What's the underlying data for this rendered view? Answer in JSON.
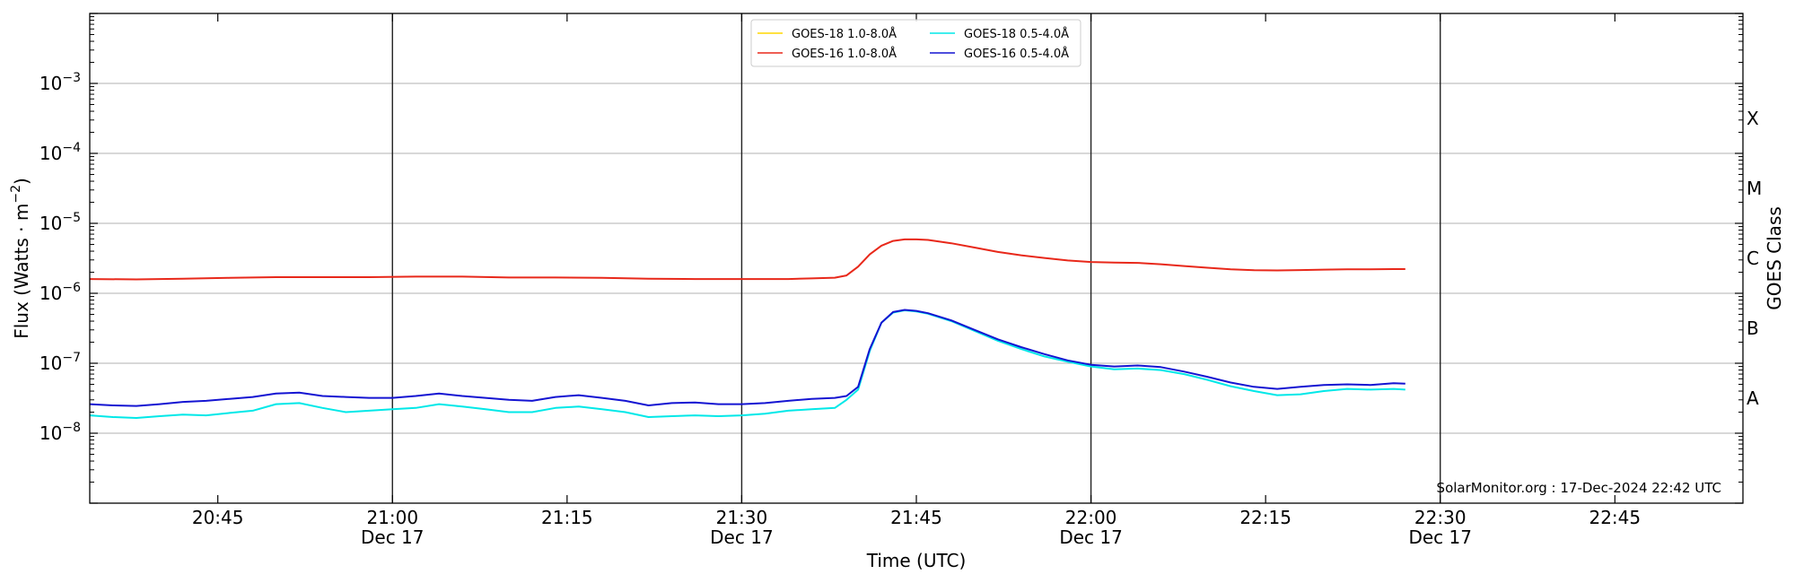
{
  "chart_data": {
    "type": "line",
    "xlabel": "Time (UTC)",
    "ylabel_prefix": "Flux (Watts · m",
    "ylabel_exp": "−2",
    "ylabel_suffix": ")",
    "right_label": "GOES Class",
    "credit": "SolarMonitor.org : 17-Dec-2024 22:42 UTC",
    "y_scale": "log",
    "ylim": [
      1e-09,
      0.01
    ],
    "xlim": [
      "20:34",
      "22:56"
    ],
    "grid": "horizontal",
    "legend_position": "top-center",
    "x_ticks": [
      {
        "time": "20:45",
        "label": "20:45",
        "date": ""
      },
      {
        "time": "21:00",
        "label": "21:00",
        "date": "Dec 17"
      },
      {
        "time": "21:15",
        "label": "21:15",
        "date": ""
      },
      {
        "time": "21:30",
        "label": "21:30",
        "date": "Dec 17"
      },
      {
        "time": "21:45",
        "label": "21:45",
        "date": ""
      },
      {
        "time": "22:00",
        "label": "22:00",
        "date": "Dec 17"
      },
      {
        "time": "22:15",
        "label": "22:15",
        "date": ""
      },
      {
        "time": "22:30",
        "label": "22:30",
        "date": "Dec 17"
      },
      {
        "time": "22:45",
        "label": "22:45",
        "date": ""
      }
    ],
    "vlines": [
      "21:00",
      "21:30",
      "22:00",
      "22:30"
    ],
    "y_ticks": [
      {
        "value": 1e-08,
        "base": "10",
        "exp": "−8"
      },
      {
        "value": 1e-07,
        "base": "10",
        "exp": "−7"
      },
      {
        "value": 1e-06,
        "base": "10",
        "exp": "−6"
      },
      {
        "value": 1e-05,
        "base": "10",
        "exp": "−5"
      },
      {
        "value": 0.0001,
        "base": "10",
        "exp": "−4"
      },
      {
        "value": 0.001,
        "base": "10",
        "exp": "−3"
      }
    ],
    "gridlines": [
      1e-08,
      1e-07,
      1e-06,
      1e-05,
      0.0001,
      0.001
    ],
    "goes_classes": [
      {
        "label": "A",
        "value": 3.16e-08
      },
      {
        "label": "B",
        "value": 3.16e-07
      },
      {
        "label": "C",
        "value": 3.16e-06
      },
      {
        "label": "M",
        "value": 3.16e-05
      },
      {
        "label": "X",
        "value": 0.000316
      }
    ],
    "series": [
      {
        "name": "GOES-18 1.0-8.0Å",
        "color": "#ffd700",
        "x": [],
        "values": []
      },
      {
        "name": "GOES-16 1.0-8.0Å",
        "color": "#e8281a",
        "x": [
          "20:34",
          "20:38",
          "20:42",
          "20:46",
          "20:50",
          "20:54",
          "20:58",
          "21:02",
          "21:06",
          "21:10",
          "21:14",
          "21:18",
          "21:22",
          "21:26",
          "21:30",
          "21:34",
          "21:36",
          "21:38",
          "21:39",
          "21:40",
          "21:41",
          "21:42",
          "21:43",
          "21:44",
          "21:45",
          "21:46",
          "21:48",
          "21:50",
          "21:52",
          "21:54",
          "21:56",
          "21:58",
          "22:00",
          "22:02",
          "22:04",
          "22:06",
          "22:08",
          "22:10",
          "22:12",
          "22:14",
          "22:16",
          "22:18",
          "22:20",
          "22:22",
          "22:24",
          "22:26",
          "22:27"
        ],
        "values": [
          1.6e-06,
          1.58e-06,
          1.62e-06,
          1.66e-06,
          1.7e-06,
          1.7e-06,
          1.7e-06,
          1.73e-06,
          1.73e-06,
          1.68e-06,
          1.68e-06,
          1.66e-06,
          1.62e-06,
          1.6e-06,
          1.6e-06,
          1.6e-06,
          1.63e-06,
          1.67e-06,
          1.8e-06,
          2.4e-06,
          3.6e-06,
          4.8e-06,
          5.6e-06,
          5.9e-06,
          5.9e-06,
          5.8e-06,
          5.2e-06,
          4.5e-06,
          3.9e-06,
          3.5e-06,
          3.2e-06,
          2.95e-06,
          2.8e-06,
          2.75e-06,
          2.72e-06,
          2.6e-06,
          2.45e-06,
          2.32e-06,
          2.2e-06,
          2.14e-06,
          2.12e-06,
          2.15e-06,
          2.18e-06,
          2.2e-06,
          2.2e-06,
          2.22e-06,
          2.22e-06
        ]
      },
      {
        "name": "GOES-18 0.5-4.0Å",
        "color": "#00e8e8",
        "x": [
          "20:34",
          "20:36",
          "20:38",
          "20:40",
          "20:42",
          "20:44",
          "20:46",
          "20:48",
          "20:50",
          "20:52",
          "20:54",
          "20:56",
          "20:58",
          "21:00",
          "21:02",
          "21:04",
          "21:06",
          "21:08",
          "21:10",
          "21:12",
          "21:14",
          "21:16",
          "21:18",
          "21:20",
          "21:22",
          "21:24",
          "21:26",
          "21:28",
          "21:30",
          "21:32",
          "21:34",
          "21:36",
          "21:38",
          "21:39",
          "21:40",
          "21:41",
          "21:42",
          "21:43",
          "21:44",
          "21:45",
          "21:46",
          "21:48",
          "21:50",
          "21:52",
          "21:54",
          "21:56",
          "21:58",
          "22:00",
          "22:02",
          "22:04",
          "22:06",
          "22:08",
          "22:10",
          "22:12",
          "22:14",
          "22:16",
          "22:18",
          "22:20",
          "22:22",
          "22:24",
          "22:26",
          "22:27"
        ],
        "values": [
          1.8e-08,
          1.7e-08,
          1.65e-08,
          1.75e-08,
          1.85e-08,
          1.8e-08,
          1.95e-08,
          2.1e-08,
          2.6e-08,
          2.7e-08,
          2.3e-08,
          2e-08,
          2.1e-08,
          2.2e-08,
          2.3e-08,
          2.6e-08,
          2.4e-08,
          2.2e-08,
          2e-08,
          2e-08,
          2.3e-08,
          2.4e-08,
          2.2e-08,
          2e-08,
          1.7e-08,
          1.75e-08,
          1.8e-08,
          1.75e-08,
          1.8e-08,
          1.9e-08,
          2.1e-08,
          2.2e-08,
          2.3e-08,
          3e-08,
          4.2e-08,
          1.5e-07,
          3.8e-07,
          5.3e-07,
          5.7e-07,
          5.5e-07,
          5.1e-07,
          4e-07,
          2.9e-07,
          2.1e-07,
          1.6e-07,
          1.25e-07,
          1.05e-07,
          9e-08,
          8.2e-08,
          8.4e-08,
          8e-08,
          7e-08,
          5.8e-08,
          4.7e-08,
          4e-08,
          3.5e-08,
          3.6e-08,
          4e-08,
          4.3e-08,
          4.2e-08,
          4.3e-08,
          4.2e-08
        ]
      },
      {
        "name": "GOES-16 0.5-4.0Å",
        "color": "#1414d2",
        "x": [
          "20:34",
          "20:36",
          "20:38",
          "20:40",
          "20:42",
          "20:44",
          "20:46",
          "20:48",
          "20:50",
          "20:52",
          "20:54",
          "20:56",
          "20:58",
          "21:00",
          "21:02",
          "21:04",
          "21:06",
          "21:08",
          "21:10",
          "21:12",
          "21:14",
          "21:16",
          "21:18",
          "21:20",
          "21:22",
          "21:24",
          "21:26",
          "21:28",
          "21:30",
          "21:32",
          "21:34",
          "21:36",
          "21:38",
          "21:39",
          "21:40",
          "21:41",
          "21:42",
          "21:43",
          "21:44",
          "21:45",
          "21:46",
          "21:48",
          "21:50",
          "21:52",
          "21:54",
          "21:56",
          "21:58",
          "22:00",
          "22:02",
          "22:04",
          "22:06",
          "22:08",
          "22:10",
          "22:12",
          "22:14",
          "22:16",
          "22:18",
          "22:20",
          "22:22",
          "22:24",
          "22:26",
          "22:27"
        ],
        "values": [
          2.6e-08,
          2.5e-08,
          2.45e-08,
          2.6e-08,
          2.8e-08,
          2.9e-08,
          3.1e-08,
          3.3e-08,
          3.7e-08,
          3.8e-08,
          3.4e-08,
          3.3e-08,
          3.2e-08,
          3.2e-08,
          3.4e-08,
          3.7e-08,
          3.4e-08,
          3.2e-08,
          3e-08,
          2.9e-08,
          3.3e-08,
          3.5e-08,
          3.2e-08,
          2.9e-08,
          2.5e-08,
          2.7e-08,
          2.75e-08,
          2.6e-08,
          2.6e-08,
          2.7e-08,
          2.9e-08,
          3.1e-08,
          3.2e-08,
          3.4e-08,
          4.6e-08,
          1.6e-07,
          3.8e-07,
          5.4e-07,
          5.8e-07,
          5.6e-07,
          5.2e-07,
          4.1e-07,
          3e-07,
          2.2e-07,
          1.7e-07,
          1.35e-07,
          1.1e-07,
          9.5e-08,
          9e-08,
          9.3e-08,
          8.8e-08,
          7.6e-08,
          6.4e-08,
          5.3e-08,
          4.6e-08,
          4.3e-08,
          4.6e-08,
          4.9e-08,
          5e-08,
          4.9e-08,
          5.2e-08,
          5.1e-08
        ]
      }
    ]
  }
}
